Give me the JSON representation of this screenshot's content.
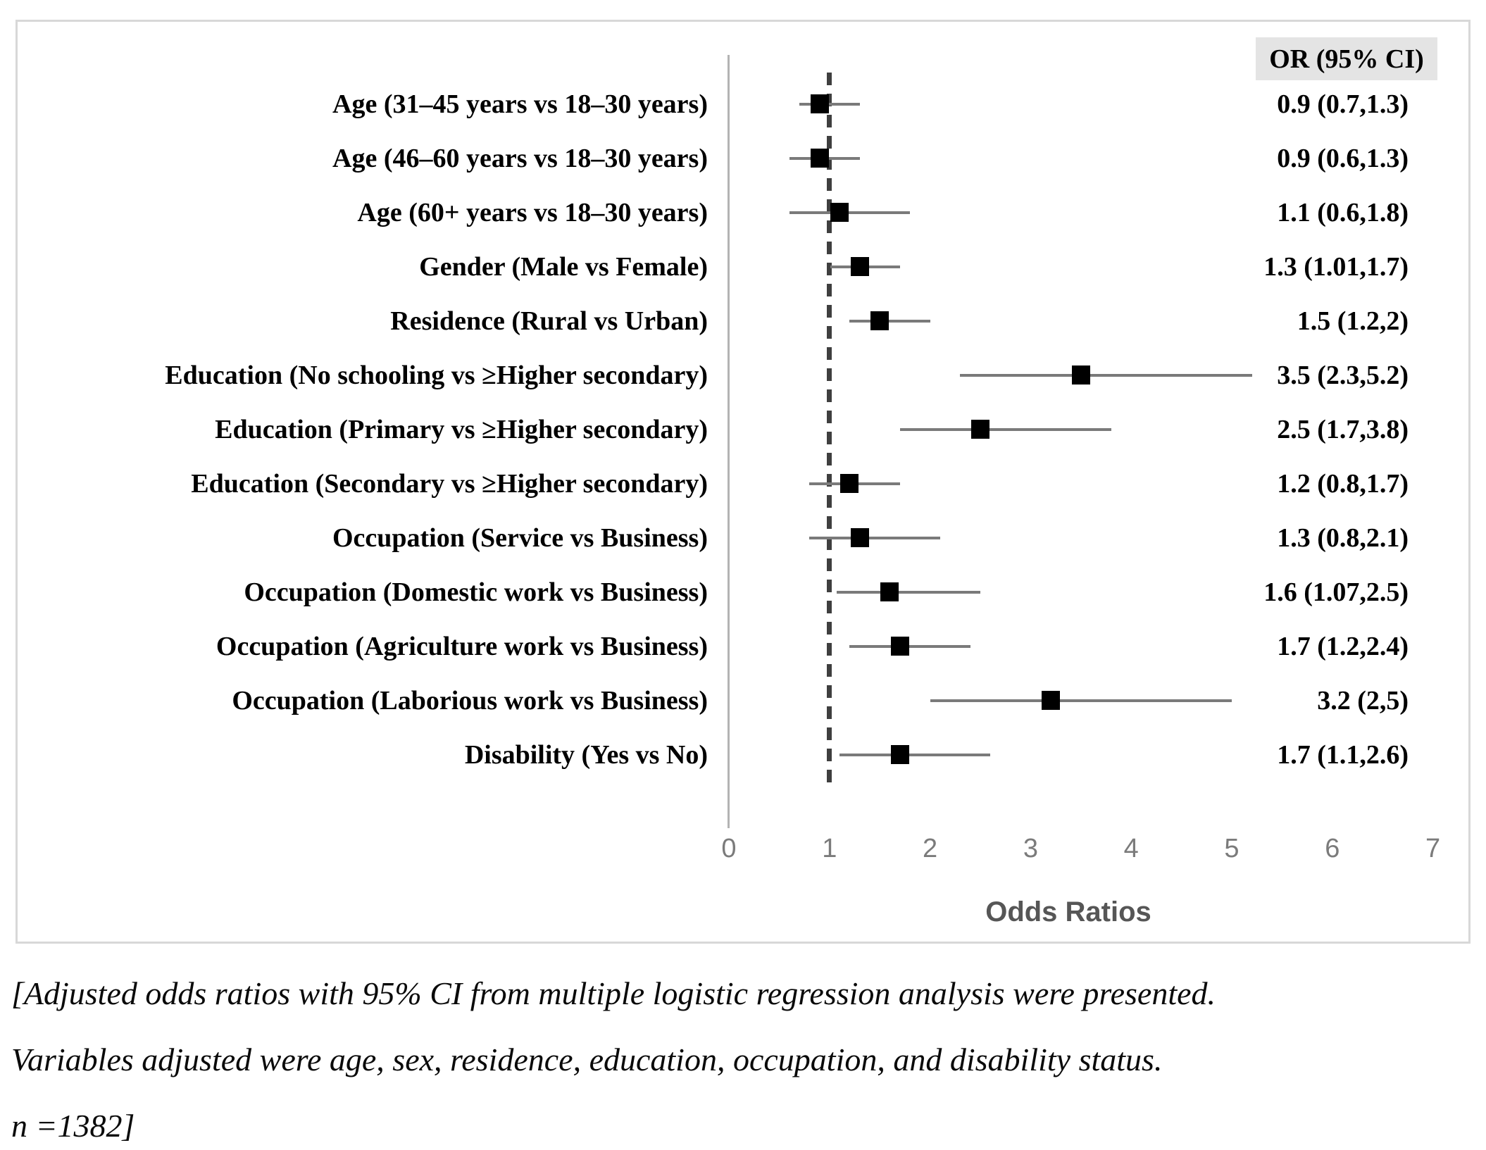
{
  "figure": {
    "caption_lines": [
      "[Adjusted odds ratios with 95% CI from multiple logistic regression analysis were presented.",
      "Variables adjusted were age, sex, residence, education, occupation, and disability status.",
      "n =1382]"
    ]
  },
  "chart_data": {
    "type": "scatter",
    "subtype": "forest-plot",
    "title": "",
    "xlabel": "Odds Ratios",
    "ylabel": "",
    "xlim": [
      0,
      7
    ],
    "x_ticks": [
      "0",
      "1",
      "2",
      "3",
      "4",
      "5",
      "6",
      "7"
    ],
    "reference_line_x": 1,
    "column_header": "OR (95% CI)",
    "grid": false,
    "legend": false,
    "rows": [
      {
        "label": "Age (31–45 years vs 18–30 years)",
        "or": 0.9,
        "ci_low": 0.7,
        "ci_high": 1.3,
        "or_text": "0.9 (0.7,1.3)"
      },
      {
        "label": "Age (46–60 years vs 18–30 years)",
        "or": 0.9,
        "ci_low": 0.6,
        "ci_high": 1.3,
        "or_text": "0.9 (0.6,1.3)"
      },
      {
        "label": "Age (60+ years vs 18–30 years)",
        "or": 1.1,
        "ci_low": 0.6,
        "ci_high": 1.8,
        "or_text": "1.1 (0.6,1.8)"
      },
      {
        "label": "Gender (Male vs Female)",
        "or": 1.3,
        "ci_low": 1.01,
        "ci_high": 1.7,
        "or_text": "1.3 (1.01,1.7)"
      },
      {
        "label": "Residence (Rural vs Urban)",
        "or": 1.5,
        "ci_low": 1.2,
        "ci_high": 2.0,
        "or_text": "1.5 (1.2,2)"
      },
      {
        "label": "Education (No schooling vs ≥Higher secondary)",
        "or": 3.5,
        "ci_low": 2.3,
        "ci_high": 5.2,
        "or_text": "3.5 (2.3,5.2)"
      },
      {
        "label": "Education (Primary vs ≥Higher secondary)",
        "or": 2.5,
        "ci_low": 1.7,
        "ci_high": 3.8,
        "or_text": "2.5 (1.7,3.8)"
      },
      {
        "label": "Education (Secondary vs ≥Higher secondary)",
        "or": 1.2,
        "ci_low": 0.8,
        "ci_high": 1.7,
        "or_text": "1.2 (0.8,1.7)"
      },
      {
        "label": "Occupation (Service vs Business)",
        "or": 1.3,
        "ci_low": 0.8,
        "ci_high": 2.1,
        "or_text": "1.3 (0.8,2.1)"
      },
      {
        "label": "Occupation (Domestic work vs Business)",
        "or": 1.6,
        "ci_low": 1.07,
        "ci_high": 2.5,
        "or_text": "1.6 (1.07,2.5)"
      },
      {
        "label": "Occupation (Agriculture work vs Business)",
        "or": 1.7,
        "ci_low": 1.2,
        "ci_high": 2.4,
        "or_text": "1.7 (1.2,2.4)"
      },
      {
        "label": "Occupation (Laborious work vs Business)",
        "or": 3.2,
        "ci_low": 2.0,
        "ci_high": 5.0,
        "or_text": "3.2 (2,5)"
      },
      {
        "label": "Disability (Yes vs No)",
        "or": 1.7,
        "ci_low": 1.1,
        "ci_high": 2.6,
        "or_text": "1.7 (1.1,2.6)"
      }
    ],
    "colors": {
      "marker": "#000000",
      "whisker": "#7a7a7a",
      "reference_line": "#3f3f3f",
      "axis_line": "#b3b3b3",
      "tick_label": "#7b7b7b",
      "xlabel": "#565656",
      "header_bg": "#e4e4e4",
      "panel_border": "#d8d8d8"
    }
  }
}
